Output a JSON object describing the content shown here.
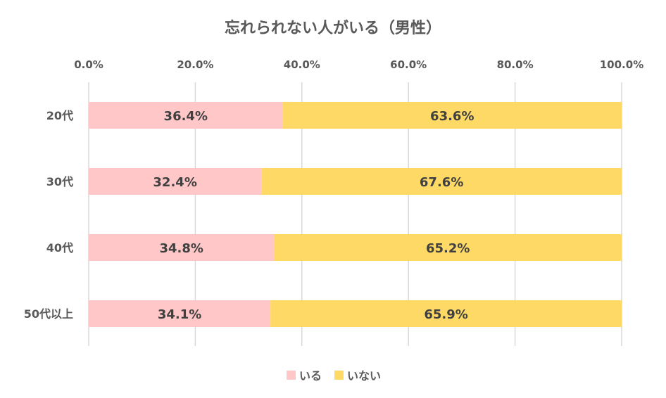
{
  "chart_data": {
    "type": "bar",
    "orientation": "horizontal",
    "stacked": "percent",
    "title": "忘れられない人がいる（男性）",
    "categories": [
      "20代",
      "30代",
      "40代",
      "50代以上"
    ],
    "series": [
      {
        "name": "いる",
        "values": [
          36.4,
          32.4,
          34.8,
          34.1
        ],
        "labels": [
          "36.4%",
          "32.4%",
          "34.8%",
          "34.1%"
        ],
        "color": "#FFC7C7"
      },
      {
        "name": "いない",
        "values": [
          63.6,
          67.6,
          65.2,
          65.9
        ],
        "labels": [
          "63.6%",
          "67.6%",
          "65.2%",
          "65.9%"
        ],
        "color": "#FFD966"
      }
    ],
    "x_ticks": [
      "0.0%",
      "20.0%",
      "40.0%",
      "60.0%",
      "80.0%",
      "100.0%"
    ],
    "xlim": [
      0,
      100
    ],
    "x_axis_position": "top",
    "grid": true,
    "legend": "bottom"
  }
}
